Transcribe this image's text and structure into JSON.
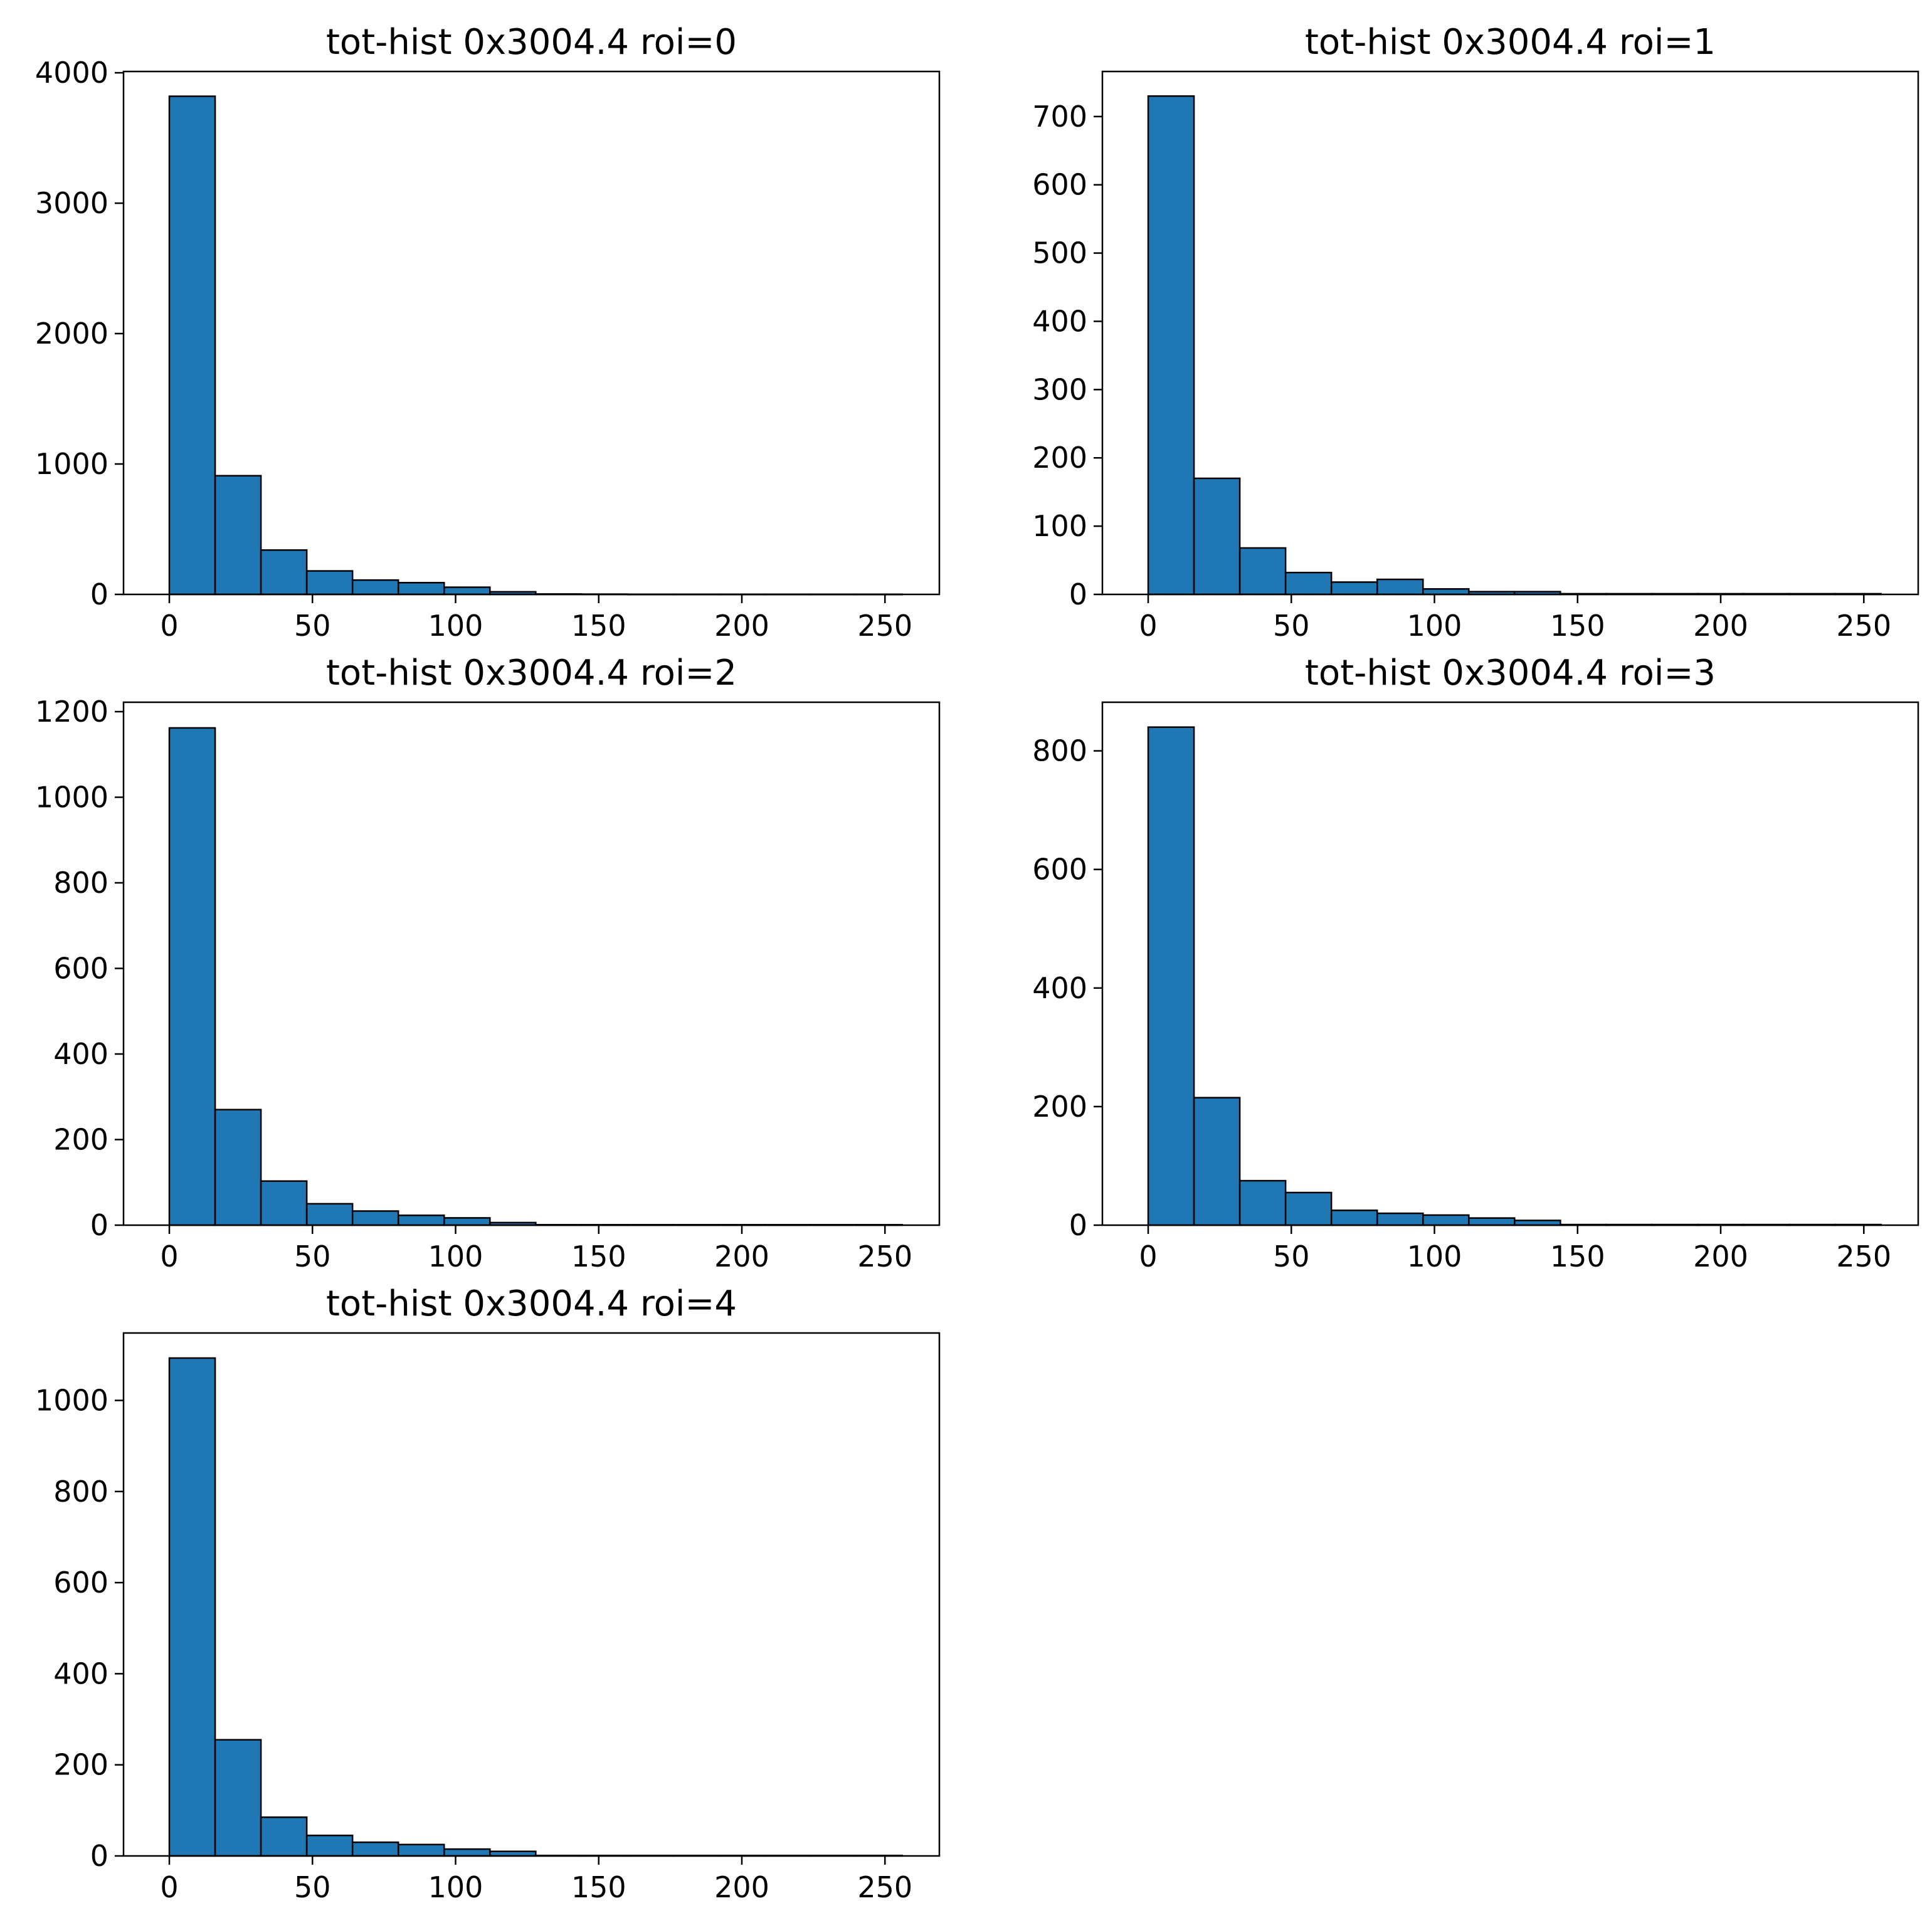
{
  "chart_data": [
    {
      "type": "bar",
      "title": "tot-hist 0x3004.4 roi=0",
      "xlabel": "",
      "ylabel": "",
      "bin_edges": [
        0,
        16,
        32,
        48,
        64,
        80,
        96,
        112,
        128,
        144,
        160,
        176,
        192,
        208,
        224,
        240,
        256
      ],
      "values": [
        3820,
        910,
        340,
        180,
        110,
        90,
        55,
        20,
        3,
        2,
        1,
        1,
        1,
        1,
        1,
        1
      ],
      "xlim": [
        -16,
        269
      ],
      "ylim": [
        0,
        4010
      ],
      "xticks": [
        0,
        50,
        100,
        150,
        200,
        250
      ],
      "xtick_labels": [
        "0",
        "50",
        "100",
        "150",
        "200",
        "250"
      ],
      "yticks": [
        0,
        1000,
        2000,
        3000,
        4000
      ],
      "ytick_labels": [
        "0",
        "1000",
        "2000",
        "3000",
        "4000"
      ]
    },
    {
      "type": "bar",
      "title": "tot-hist 0x3004.4 roi=1",
      "xlabel": "",
      "ylabel": "",
      "bin_edges": [
        0,
        16,
        32,
        48,
        64,
        80,
        96,
        112,
        128,
        144,
        160,
        176,
        192,
        208,
        224,
        240,
        256
      ],
      "values": [
        730,
        170,
        68,
        32,
        18,
        22,
        8,
        4,
        4,
        1,
        1,
        1,
        1,
        1,
        1,
        1
      ],
      "xlim": [
        -16,
        269
      ],
      "ylim": [
        0,
        766
      ],
      "xticks": [
        0,
        50,
        100,
        150,
        200,
        250
      ],
      "xtick_labels": [
        "0",
        "50",
        "100",
        "150",
        "200",
        "250"
      ],
      "yticks": [
        0,
        100,
        200,
        300,
        400,
        500,
        600,
        700
      ],
      "ytick_labels": [
        "0",
        "100",
        "200",
        "300",
        "400",
        "500",
        "600",
        "700"
      ]
    },
    {
      "type": "bar",
      "title": "tot-hist 0x3004.4 roi=2",
      "xlabel": "",
      "ylabel": "",
      "bin_edges": [
        0,
        16,
        32,
        48,
        64,
        80,
        96,
        112,
        128,
        144,
        160,
        176,
        192,
        208,
        224,
        240,
        256
      ],
      "values": [
        1162,
        270,
        103,
        50,
        33,
        23,
        17,
        6,
        1,
        1,
        1,
        1,
        1,
        1,
        1,
        1
      ],
      "xlim": [
        -16,
        269
      ],
      "ylim": [
        0,
        1222
      ],
      "xticks": [
        0,
        50,
        100,
        150,
        200,
        250
      ],
      "xtick_labels": [
        "0",
        "50",
        "100",
        "150",
        "200",
        "250"
      ],
      "yticks": [
        0,
        200,
        400,
        600,
        800,
        1000,
        1200
      ],
      "ytick_labels": [
        "0",
        "200",
        "400",
        "600",
        "800",
        "1000",
        "1200"
      ]
    },
    {
      "type": "bar",
      "title": "tot-hist 0x3004.4 roi=3",
      "xlabel": "",
      "ylabel": "",
      "bin_edges": [
        0,
        16,
        32,
        48,
        64,
        80,
        96,
        112,
        128,
        144,
        160,
        176,
        192,
        208,
        224,
        240,
        256
      ],
      "values": [
        840,
        215,
        75,
        55,
        25,
        20,
        17,
        12,
        8,
        1,
        1,
        1,
        1,
        1,
        1,
        1
      ],
      "xlim": [
        -16,
        269
      ],
      "ylim": [
        0,
        882
      ],
      "xticks": [
        0,
        50,
        100,
        150,
        200,
        250
      ],
      "xtick_labels": [
        "0",
        "50",
        "100",
        "150",
        "200",
        "250"
      ],
      "yticks": [
        0,
        200,
        400,
        600,
        800
      ],
      "ytick_labels": [
        "0",
        "200",
        "400",
        "600",
        "800"
      ]
    },
    {
      "type": "bar",
      "title": "tot-hist 0x3004.4 roi=4",
      "xlabel": "",
      "ylabel": "",
      "bin_edges": [
        0,
        16,
        32,
        48,
        64,
        80,
        96,
        112,
        128,
        144,
        160,
        176,
        192,
        208,
        224,
        240,
        256
      ],
      "values": [
        1093,
        255,
        85,
        45,
        30,
        25,
        15,
        10,
        1,
        1,
        1,
        1,
        1,
        1,
        1,
        1
      ],
      "xlim": [
        -16,
        269
      ],
      "ylim": [
        0,
        1148
      ],
      "xticks": [
        0,
        50,
        100,
        150,
        200,
        250
      ],
      "xtick_labels": [
        "0",
        "50",
        "100",
        "150",
        "200",
        "250"
      ],
      "yticks": [
        0,
        200,
        400,
        600,
        800,
        1000
      ],
      "ytick_labels": [
        "0",
        "200",
        "400",
        "600",
        "800",
        "1000"
      ]
    }
  ],
  "style": {
    "bar_color": "#1f77b4",
    "edge_color": "#000000"
  }
}
